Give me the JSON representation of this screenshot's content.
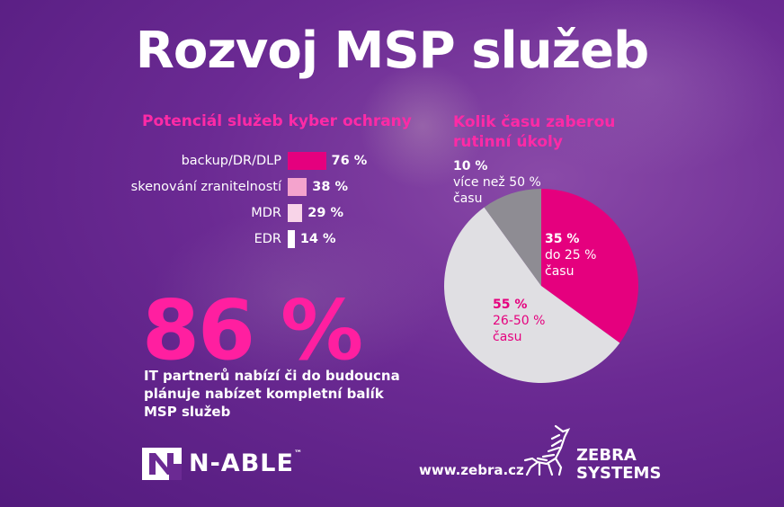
{
  "title": "Rozvoj MSP služeb",
  "chart_data": [
    {
      "type": "bar",
      "orientation": "horizontal",
      "title": "Potenciál služeb kyber ochrany",
      "categories": [
        "backup/DR/DLP",
        "skenování zranitelností",
        "MDR",
        "EDR"
      ],
      "values": [
        76,
        38,
        29,
        14
      ],
      "value_labels": [
        "76 %",
        "38 %",
        "29 %",
        "14 %"
      ],
      "colors": [
        "#e5007e",
        "#f4a3cd",
        "#f8d4e8",
        "#ffffff"
      ],
      "xlim": [
        0,
        100
      ]
    },
    {
      "type": "pie",
      "title": "Kolik času zaberou rutinní úkoly",
      "slices": [
        {
          "percent_label": "35 %",
          "label": "do 25 % času",
          "value": 35,
          "color": "#e5007e"
        },
        {
          "percent_label": "55 %",
          "label": "26-50 % času",
          "value": 55,
          "color": "#e0dfe3"
        },
        {
          "percent_label": "10 %",
          "label": "více než 50 % času",
          "value": 10,
          "color": "#8e8c93"
        }
      ]
    }
  ],
  "highlight": {
    "number": "86 %",
    "caption": "IT partnerů nabízí či do budoucna plánuje nabízet kompletní balík MSP služeb"
  },
  "footer": {
    "nable_logo": "N-ABLE",
    "nable_tm": "™",
    "website": "www.zebra.cz",
    "zebra_line1": "ZEBRA",
    "zebra_line2": "SYSTEMS"
  },
  "colors": {
    "accent": "#ff1fa0",
    "background": "#6b2a93"
  }
}
